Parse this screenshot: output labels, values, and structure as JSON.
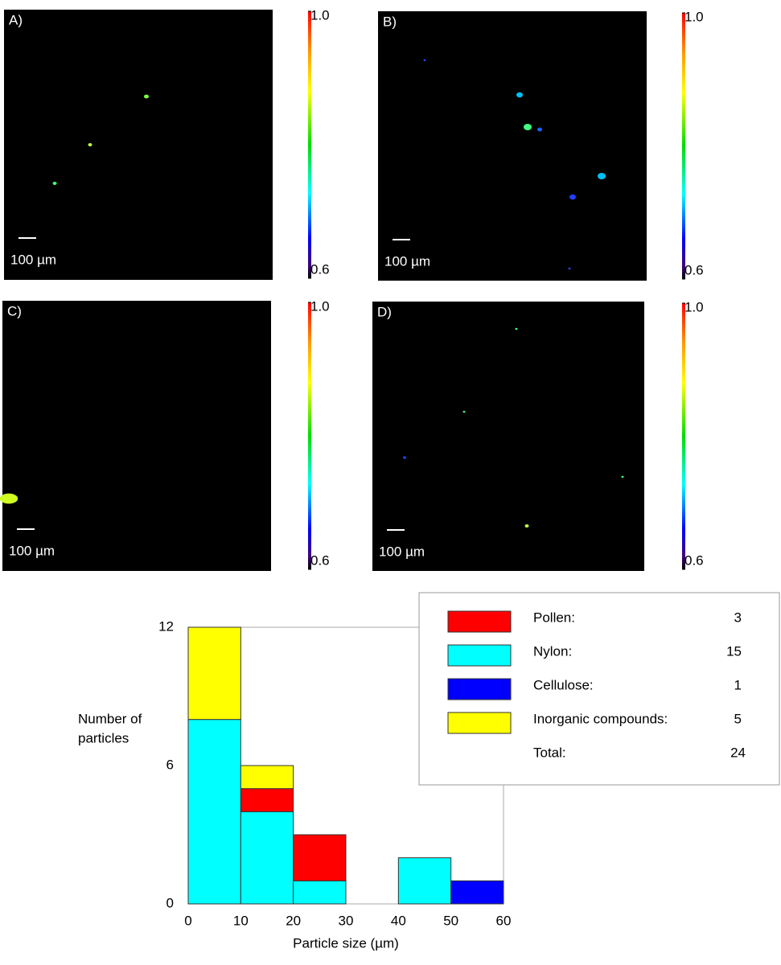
{
  "panels": [
    {
      "label": "A)",
      "scale_bar": "100 µm",
      "colorbar": {
        "lim": [
          0.6,
          1.0
        ],
        "ticks": [
          {
            "value": 1.0,
            "label": "1.0"
          },
          {
            "value": 0.6,
            "label": "0.6"
          }
        ]
      }
    },
    {
      "label": "B)",
      "scale_bar": "100 µm",
      "colorbar": {
        "lim": [
          0.6,
          1.0
        ],
        "ticks": [
          {
            "value": 1.0,
            "label": "1.0"
          },
          {
            "value": 0.6,
            "label": "0.6"
          }
        ]
      }
    },
    {
      "label": "C)",
      "scale_bar": "100 µm",
      "colorbar": {
        "lim": [
          0.6,
          1.0
        ],
        "ticks": [
          {
            "value": 1.0,
            "label": "1.0"
          },
          {
            "value": 0.6,
            "label": "0.6"
          }
        ]
      }
    },
    {
      "label": "D)",
      "scale_bar": "100 µm",
      "colorbar": {
        "lim": [
          0.6,
          1.0
        ],
        "ticks": [
          {
            "value": 1.0,
            "label": "1.0"
          },
          {
            "value": 0.6,
            "label": "0.6"
          }
        ]
      }
    }
  ],
  "chart_data": {
    "type": "histogram",
    "stacked": true,
    "xlabel": "Particle size (µm)",
    "ylabel": [
      "Number of",
      "particles"
    ],
    "bins": [
      0,
      10,
      20,
      30,
      40,
      50,
      60
    ],
    "series": [
      {
        "name": "Pollen:",
        "color": "#ff0000",
        "values": [
          0,
          1,
          2,
          0,
          0,
          0
        ],
        "total": 3
      },
      {
        "name": "Nylon:",
        "color": "#00ffff",
        "values": [
          8,
          4,
          1,
          0,
          2,
          0
        ],
        "total": 15
      },
      {
        "name": "Cellulose:",
        "color": "#0000ff",
        "values": [
          0,
          0,
          0,
          0,
          0,
          1
        ],
        "total": 1
      },
      {
        "name": "Inorganic compounds:",
        "color": "#ffff00",
        "values": [
          4,
          1,
          0,
          0,
          0,
          0
        ],
        "total": 5
      }
    ],
    "total_label": "Total:",
    "total": 24,
    "xlim": [
      0,
      60
    ],
    "xticks": [
      0,
      10,
      20,
      30,
      40,
      50,
      60
    ],
    "ylim": [
      0,
      12
    ],
    "yticks": [
      0,
      6,
      12
    ]
  }
}
